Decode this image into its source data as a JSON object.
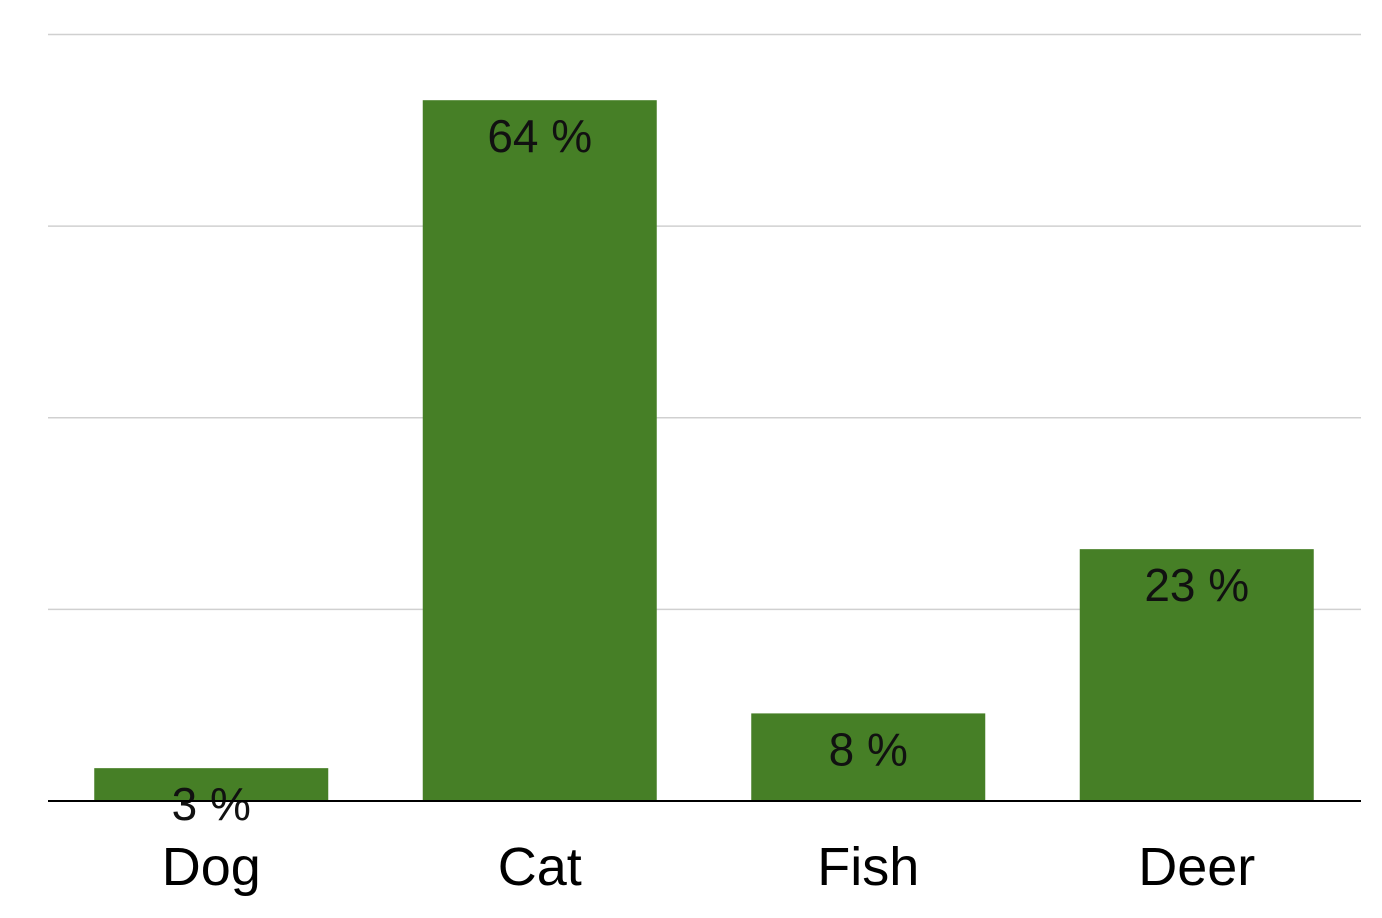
{
  "chart_data": {
    "type": "bar",
    "categories": [
      "Dog",
      "Cat",
      "Fish",
      "Deer"
    ],
    "values": [
      3,
      64,
      8,
      23
    ],
    "data_labels": [
      "3 %",
      "64 %",
      "8 %",
      "23 %"
    ],
    "ylim": [
      0,
      70
    ],
    "y_gridlines": [
      17.5,
      35,
      52.5,
      70
    ],
    "grid": true,
    "colors": {
      "bar": "#467f26",
      "grid": "#d0d0d0",
      "baseline": "#000000"
    }
  }
}
